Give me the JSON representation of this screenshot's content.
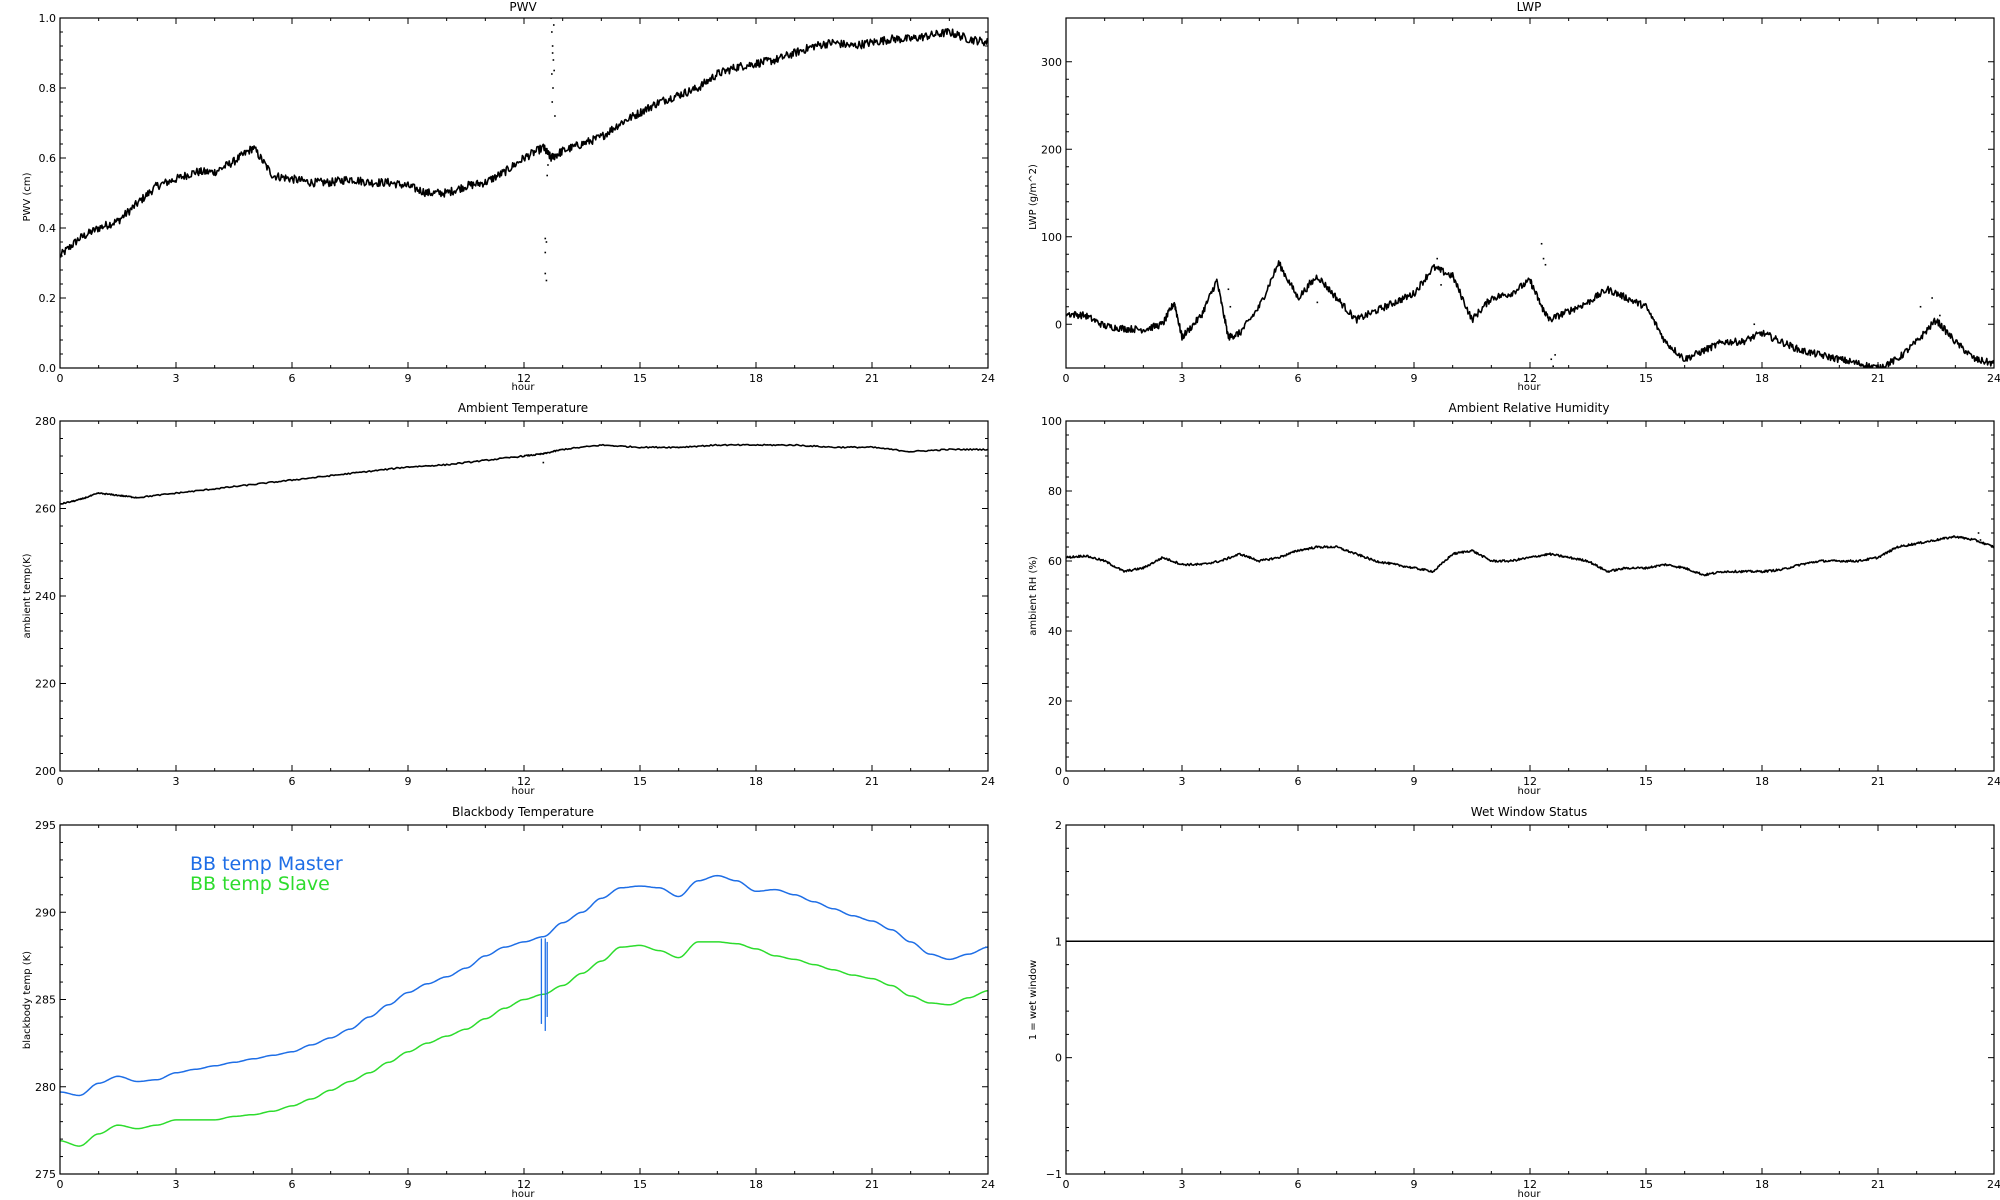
{
  "chart_data": [
    {
      "id": "pwv",
      "type": "line",
      "title": "PWV",
      "xlabel": "hour",
      "ylabel": "PWV (cm)",
      "xlim": [
        0,
        24
      ],
      "ylim": [
        0.0,
        1.0
      ],
      "xticks": [
        "0",
        "3",
        "6",
        "9",
        "12",
        "15",
        "18",
        "21",
        "24"
      ],
      "xtick_values": [
        0,
        3,
        6,
        9,
        12,
        15,
        18,
        21,
        24
      ],
      "yticks": [
        "0.0",
        "0.2",
        "0.4",
        "0.6",
        "0.8",
        "1.0"
      ],
      "ytick_values": [
        0.0,
        0.2,
        0.4,
        0.6,
        0.8,
        1.0
      ],
      "series": [
        {
          "color": "#000000",
          "noise": 0.012,
          "x": [
            0,
            0.5,
            1,
            1.5,
            2,
            2.5,
            3,
            3.5,
            4,
            4.5,
            5,
            5.5,
            6,
            6.5,
            7,
            7.5,
            8,
            8.5,
            9,
            9.5,
            10,
            10.5,
            11,
            11.5,
            12,
            12.5,
            12.7,
            13,
            13.5,
            14,
            14.5,
            15,
            15.5,
            16,
            16.5,
            17,
            17.5,
            18,
            18.5,
            19,
            19.5,
            20,
            20.5,
            21,
            21.5,
            22,
            22.5,
            23,
            23.5,
            24
          ],
          "y": [
            0.32,
            0.37,
            0.4,
            0.42,
            0.47,
            0.52,
            0.54,
            0.56,
            0.56,
            0.59,
            0.63,
            0.55,
            0.54,
            0.53,
            0.53,
            0.54,
            0.53,
            0.53,
            0.52,
            0.5,
            0.5,
            0.52,
            0.53,
            0.56,
            0.6,
            0.63,
            0.6,
            0.62,
            0.64,
            0.66,
            0.7,
            0.73,
            0.76,
            0.78,
            0.8,
            0.84,
            0.86,
            0.87,
            0.88,
            0.9,
            0.92,
            0.93,
            0.92,
            0.93,
            0.94,
            0.94,
            0.95,
            0.96,
            0.94,
            0.93
          ]
        }
      ],
      "scatter_points": [
        {
          "x": 12.55,
          "y": 0.37
        },
        {
          "x": 12.58,
          "y": 0.36
        },
        {
          "x": 12.55,
          "y": 0.33
        },
        {
          "x": 12.55,
          "y": 0.27
        },
        {
          "x": 12.58,
          "y": 0.25
        },
        {
          "x": 12.6,
          "y": 0.55
        },
        {
          "x": 12.62,
          "y": 0.58
        },
        {
          "x": 12.7,
          "y": 1.0
        },
        {
          "x": 12.72,
          "y": 0.96
        },
        {
          "x": 12.74,
          "y": 0.92
        },
        {
          "x": 12.76,
          "y": 0.88
        },
        {
          "x": 12.72,
          "y": 0.84
        },
        {
          "x": 12.75,
          "y": 0.8
        },
        {
          "x": 12.73,
          "y": 0.76
        },
        {
          "x": 12.8,
          "y": 0.72
        },
        {
          "x": 12.77,
          "y": 0.98
        },
        {
          "x": 12.74,
          "y": 0.9
        },
        {
          "x": 12.78,
          "y": 0.85
        }
      ]
    },
    {
      "id": "lwp",
      "type": "line",
      "title": "LWP",
      "xlabel": "hour",
      "ylabel": "LWP (g/m^2)",
      "xlim": [
        0,
        24
      ],
      "ylim": [
        -50,
        350
      ],
      "xticks": [
        "0",
        "3",
        "6",
        "9",
        "12",
        "15",
        "18",
        "21",
        "24"
      ],
      "xtick_values": [
        0,
        3,
        6,
        9,
        12,
        15,
        18,
        21,
        24
      ],
      "yticks": [
        "0",
        "100",
        "200",
        "300"
      ],
      "ytick_values": [
        0,
        100,
        200,
        300
      ],
      "series": [
        {
          "color": "#000000",
          "noise": 4,
          "x": [
            0,
            0.5,
            1,
            1.5,
            2,
            2.5,
            2.8,
            3,
            3.5,
            3.9,
            4.2,
            4.5,
            5,
            5.5,
            6,
            6.5,
            7,
            7.5,
            8,
            8.5,
            9,
            9.5,
            10,
            10.5,
            11,
            11.5,
            12,
            12.3,
            12.5,
            13,
            13.5,
            14,
            14.5,
            15,
            15.5,
            16,
            16.5,
            17,
            17.5,
            18,
            18.5,
            19,
            19.5,
            20,
            20.5,
            21,
            21.5,
            22,
            22.5,
            23,
            23.5,
            24
          ],
          "y": [
            12,
            10,
            -2,
            -5,
            -6,
            0,
            25,
            -15,
            10,
            50,
            -15,
            -10,
            20,
            70,
            30,
            55,
            30,
            5,
            15,
            25,
            35,
            65,
            55,
            5,
            30,
            35,
            50,
            20,
            5,
            15,
            25,
            40,
            30,
            20,
            -20,
            -40,
            -30,
            -20,
            -20,
            -10,
            -20,
            -30,
            -35,
            -40,
            -45,
            -50,
            -40,
            -20,
            5,
            -20,
            -40,
            -45
          ]
        }
      ],
      "scatter_points": [
        {
          "x": 12.3,
          "y": 92
        },
        {
          "x": 12.35,
          "y": 75
        },
        {
          "x": 12.4,
          "y": 68
        },
        {
          "x": 12.55,
          "y": -40
        },
        {
          "x": 12.6,
          "y": -48
        },
        {
          "x": 12.65,
          "y": -35
        },
        {
          "x": 4.2,
          "y": 40
        },
        {
          "x": 4.25,
          "y": 20
        },
        {
          "x": 6.3,
          "y": 50
        },
        {
          "x": 6.5,
          "y": 25
        },
        {
          "x": 9.6,
          "y": 75
        },
        {
          "x": 9.7,
          "y": 45
        },
        {
          "x": 17.8,
          "y": 0
        },
        {
          "x": 18.2,
          "y": -10
        },
        {
          "x": 22.1,
          "y": 20
        },
        {
          "x": 22.4,
          "y": 30
        },
        {
          "x": 22.6,
          "y": 10
        },
        {
          "x": 23.6,
          "y": -38
        }
      ]
    },
    {
      "id": "ambient-temp",
      "type": "line",
      "title": "Ambient Temperature",
      "xlabel": "hour",
      "ylabel": "ambient temp(K)",
      "xlim": [
        0,
        24
      ],
      "ylim": [
        200,
        280
      ],
      "xticks": [
        "0",
        "3",
        "6",
        "9",
        "12",
        "15",
        "18",
        "21",
        "24"
      ],
      "xtick_values": [
        0,
        3,
        6,
        9,
        12,
        15,
        18,
        21,
        24
      ],
      "yticks": [
        "200",
        "220",
        "240",
        "260",
        "280"
      ],
      "ytick_values": [
        200,
        220,
        240,
        260,
        280
      ],
      "series": [
        {
          "color": "#000000",
          "noise": 0.15,
          "x": [
            0,
            0.5,
            1,
            1.5,
            2,
            3,
            4,
            5,
            6,
            7,
            8,
            9,
            10,
            11,
            12,
            12.5,
            13,
            14,
            15,
            16,
            17,
            18,
            19,
            20,
            21,
            22,
            23,
            24
          ],
          "y": [
            261,
            262,
            263.5,
            263,
            262.5,
            263.5,
            264.5,
            265.5,
            266.5,
            267.5,
            268.5,
            269.5,
            270,
            271,
            272,
            272.5,
            273.5,
            274.5,
            274,
            274,
            274.5,
            274.5,
            274.5,
            274,
            274,
            273,
            273.5,
            273.5
          ]
        }
      ],
      "scatter_points": [
        {
          "x": 12.5,
          "y": 270.5
        }
      ]
    },
    {
      "id": "ambient-rh",
      "type": "line",
      "title": "Ambient Relative Humidity",
      "xlabel": "hour",
      "ylabel": "ambient RH (%)",
      "xlim": [
        0,
        24
      ],
      "ylim": [
        0,
        100
      ],
      "xticks": [
        "0",
        "3",
        "6",
        "9",
        "12",
        "15",
        "18",
        "21",
        "24"
      ],
      "xtick_values": [
        0,
        3,
        6,
        9,
        12,
        15,
        18,
        21,
        24
      ],
      "yticks": [
        "0",
        "20",
        "40",
        "60",
        "80",
        "100"
      ],
      "ytick_values": [
        0,
        20,
        40,
        60,
        80,
        100
      ],
      "series": [
        {
          "color": "#000000",
          "noise": 0.3,
          "x": [
            0,
            0.5,
            1,
            1.5,
            2,
            2.5,
            3,
            3.5,
            4,
            4.5,
            5,
            5.5,
            6,
            6.5,
            7,
            7.5,
            8,
            8.5,
            9,
            9.5,
            10,
            10.5,
            11,
            11.5,
            12,
            12.5,
            13,
            13.5,
            14,
            14.5,
            15,
            15.5,
            16,
            16.5,
            17,
            17.5,
            18,
            18.5,
            19,
            19.5,
            20,
            20.5,
            21,
            21.5,
            22,
            22.5,
            23,
            23.5,
            24
          ],
          "y": [
            61,
            61.5,
            60,
            57,
            58,
            61,
            59,
            59,
            60,
            62,
            60,
            61,
            63,
            64,
            64,
            62,
            60,
            59,
            58,
            57,
            62,
            63,
            60,
            60,
            61,
            62,
            61,
            60,
            57,
            58,
            58,
            59,
            58,
            56,
            57,
            57,
            57,
            57.5,
            59,
            60,
            60,
            60,
            61,
            64,
            65,
            66,
            67,
            66,
            64
          ]
        }
      ],
      "scatter_points": [
        {
          "x": 23.6,
          "y": 68
        },
        {
          "x": 23.65,
          "y": 66
        }
      ]
    },
    {
      "id": "blackbody-temp",
      "type": "line",
      "title": "Blackbody Temperature",
      "xlabel": "hour",
      "ylabel": "blackbody temp (K)",
      "xlim": [
        0,
        24
      ],
      "ylim": [
        275,
        295
      ],
      "xticks": [
        "0",
        "3",
        "6",
        "9",
        "12",
        "15",
        "18",
        "21",
        "24"
      ],
      "xtick_values": [
        0,
        3,
        6,
        9,
        12,
        15,
        18,
        21,
        24
      ],
      "yticks": [
        "275",
        "280",
        "285",
        "290",
        "295"
      ],
      "ytick_values": [
        275,
        280,
        285,
        290,
        295
      ],
      "legend": [
        "BB temp Master",
        "BB temp Slave"
      ],
      "series": [
        {
          "name": "BB temp Master",
          "color": "#1e6ee6",
          "noise": 0,
          "x": [
            0,
            0.5,
            1,
            1.5,
            2,
            2.5,
            3,
            3.5,
            4,
            4.5,
            5,
            5.5,
            6,
            6.5,
            7,
            7.5,
            8,
            8.5,
            9,
            9.5,
            10,
            10.5,
            11,
            11.5,
            12,
            12.5,
            13,
            13.5,
            14,
            14.5,
            15,
            15.5,
            16,
            16.5,
            17,
            17.5,
            18,
            18.5,
            19,
            19.5,
            20,
            20.5,
            21,
            21.5,
            22,
            22.5,
            23,
            23.5,
            24
          ],
          "y": [
            279.7,
            279.5,
            280.2,
            280.6,
            280.3,
            280.4,
            280.8,
            281.0,
            281.2,
            281.4,
            281.6,
            281.8,
            282.0,
            282.4,
            282.8,
            283.3,
            284.0,
            284.7,
            285.4,
            285.9,
            286.3,
            286.8,
            287.5,
            288.0,
            288.3,
            288.6,
            289.4,
            290.0,
            290.8,
            291.4,
            291.5,
            291.4,
            290.9,
            291.8,
            292.1,
            291.8,
            291.2,
            291.3,
            291.0,
            290.6,
            290.2,
            289.8,
            289.5,
            289.0,
            288.3,
            287.6,
            287.3,
            287.6,
            288.0
          ]
        },
        {
          "name": "BB temp Slave",
          "color": "#2ddc2d",
          "noise": 0,
          "x": [
            0,
            0.5,
            1,
            1.5,
            2,
            2.5,
            3,
            3.5,
            4,
            4.5,
            5,
            5.5,
            6,
            6.5,
            7,
            7.5,
            8,
            8.5,
            9,
            9.5,
            10,
            10.5,
            11,
            11.5,
            12,
            12.5,
            13,
            13.5,
            14,
            14.5,
            15,
            15.5,
            16,
            16.5,
            17,
            17.5,
            18,
            18.5,
            19,
            19.5,
            20,
            20.5,
            21,
            21.5,
            22,
            22.5,
            23,
            23.5,
            24
          ],
          "y": [
            276.9,
            276.6,
            277.3,
            277.8,
            277.6,
            277.8,
            278.1,
            278.1,
            278.1,
            278.3,
            278.4,
            278.6,
            278.9,
            279.3,
            279.8,
            280.3,
            280.8,
            281.4,
            282.0,
            282.5,
            282.9,
            283.3,
            283.9,
            284.5,
            285.0,
            285.3,
            285.8,
            286.5,
            287.2,
            288.0,
            288.1,
            287.8,
            287.4,
            288.3,
            288.3,
            288.2,
            287.9,
            287.5,
            287.3,
            287.0,
            286.7,
            286.4,
            286.2,
            285.8,
            285.2,
            284.8,
            284.7,
            285.1,
            285.5
          ]
        }
      ],
      "spikes": [
        {
          "x": 12.45,
          "y_top": 288.5,
          "y_bottom": 283.6,
          "color": "#1e6ee6"
        },
        {
          "x": 12.55,
          "y_top": 288.5,
          "y_bottom": 283.2,
          "color": "#1e6ee6"
        },
        {
          "x": 12.6,
          "y_top": 288.3,
          "y_bottom": 284.0,
          "color": "#1e6ee6"
        }
      ]
    },
    {
      "id": "wet-window",
      "type": "line",
      "title": "Wet Window Status",
      "xlabel": "hour",
      "ylabel": "1 = wet window",
      "xlim": [
        0,
        24
      ],
      "ylim": [
        -1,
        2
      ],
      "xticks": [
        "0",
        "3",
        "6",
        "9",
        "12",
        "15",
        "18",
        "21",
        "24"
      ],
      "xtick_values": [
        0,
        3,
        6,
        9,
        12,
        15,
        18,
        21,
        24
      ],
      "yticks": [
        "−1",
        "0",
        "1",
        "2"
      ],
      "ytick_values": [
        -1,
        0,
        1,
        2
      ],
      "series": [
        {
          "color": "#000000",
          "noise": 0,
          "x": [
            0,
            24
          ],
          "y": [
            1,
            1
          ]
        }
      ]
    }
  ]
}
